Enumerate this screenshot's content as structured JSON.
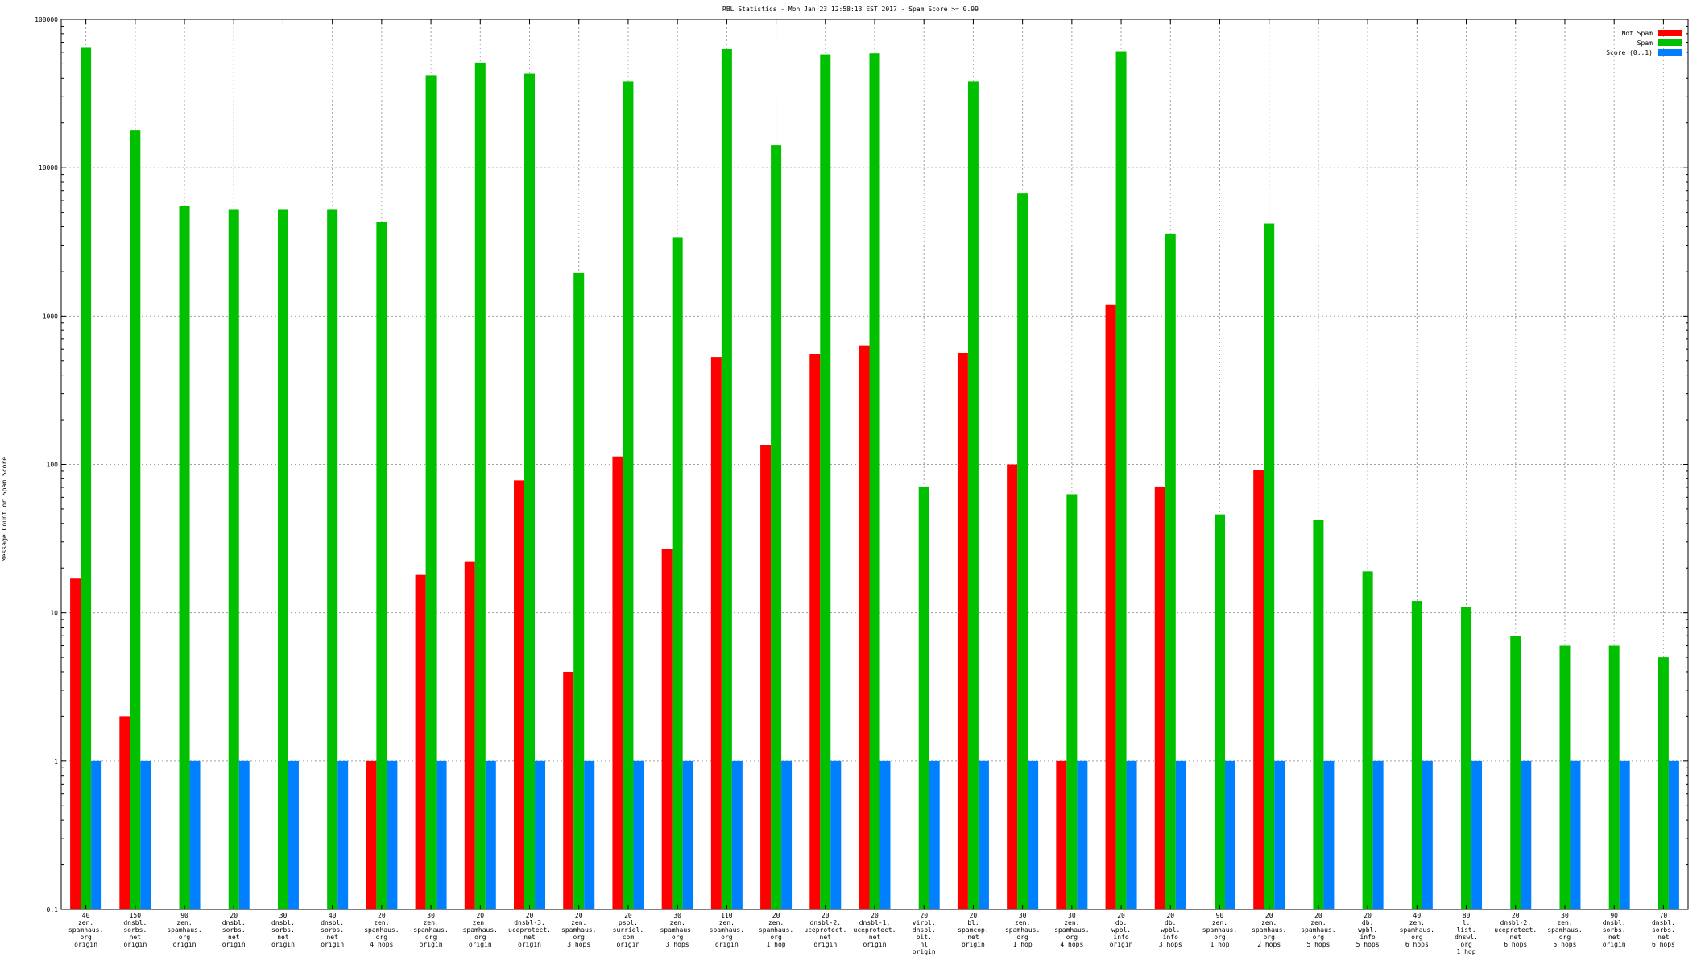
{
  "chart_data": {
    "type": "bar",
    "title": "RBL Statistics - Mon Jan 23 12:58:13 EST 2017 - Spam Score >= 0.99",
    "ylabel": "Message Count or Spam Score",
    "xlabel": "",
    "yscale": "log",
    "ylim": [
      0.1,
      100000
    ],
    "yticks": [
      {
        "value": 0.1,
        "label": "0.1"
      },
      {
        "value": 1,
        "label": "1"
      },
      {
        "value": 10,
        "label": "10"
      },
      {
        "value": 100,
        "label": "100"
      },
      {
        "value": 1000,
        "label": "1000"
      },
      {
        "value": 10000,
        "label": "10000"
      },
      {
        "value": 100000,
        "label": "100000"
      }
    ],
    "grid": true,
    "legend_position": "top-right",
    "categories": [
      [
        "40",
        "zen.",
        "spamhaus.",
        "org",
        "origin"
      ],
      [
        "150",
        "dnsbl.",
        "sorbs.",
        "net",
        "origin"
      ],
      [
        "90",
        "zen.",
        "spamhaus.",
        "org",
        "origin"
      ],
      [
        "20",
        "dnsbl.",
        "sorbs.",
        "net",
        "origin"
      ],
      [
        "30",
        "dnsbl.",
        "sorbs.",
        "net",
        "origin"
      ],
      [
        "40",
        "dnsbl.",
        "sorbs.",
        "net",
        "origin"
      ],
      [
        "20",
        "zen.",
        "spamhaus.",
        "org",
        "4 hops"
      ],
      [
        "30",
        "zen.",
        "spamhaus.",
        "org",
        "origin"
      ],
      [
        "20",
        "zen.",
        "spamhaus.",
        "org",
        "origin"
      ],
      [
        "20",
        "dnsbl-3.",
        "uceprotect.",
        "net",
        "origin"
      ],
      [
        "20",
        "zen.",
        "spamhaus.",
        "org",
        "3 hops"
      ],
      [
        "20",
        "psbl.",
        "surriel.",
        "com",
        "origin"
      ],
      [
        "30",
        "zen.",
        "spamhaus.",
        "org",
        "3 hops"
      ],
      [
        "110",
        "zen.",
        "spamhaus.",
        "org",
        "origin"
      ],
      [
        "20",
        "zen.",
        "spamhaus.",
        "org",
        "1 hop"
      ],
      [
        "20",
        "dnsbl-2.",
        "uceprotect.",
        "net",
        "origin"
      ],
      [
        "20",
        "dnsbl-1.",
        "uceprotect.",
        "net",
        "origin"
      ],
      [
        "20",
        "virbl.",
        "dnsbl.",
        "bit.",
        "nl",
        "origin"
      ],
      [
        "20",
        "bl.",
        "spamcop.",
        "net",
        "origin"
      ],
      [
        "30",
        "zen.",
        "spamhaus.",
        "org",
        "1 hop"
      ],
      [
        "30",
        "zen.",
        "spamhaus.",
        "org",
        "4 hops"
      ],
      [
        "20",
        "db.",
        "wpbl.",
        "info",
        "origin"
      ],
      [
        "20",
        "db.",
        "wpbl.",
        "info",
        "3 hops"
      ],
      [
        "90",
        "zen.",
        "spamhaus.",
        "org",
        "1 hop"
      ],
      [
        "20",
        "zen.",
        "spamhaus.",
        "org",
        "2 hops"
      ],
      [
        "20",
        "zen.",
        "spamhaus.",
        "org",
        "5 hops"
      ],
      [
        "20",
        "db.",
        "wpbl.",
        "info",
        "5 hops"
      ],
      [
        "40",
        "zen.",
        "spamhaus.",
        "org",
        "6 hops"
      ],
      [
        "80",
        "l.",
        "list.",
        "dnswl.",
        "org",
        "1 hop"
      ],
      [
        "20",
        "dnsbl-2.",
        "uceprotect.",
        "net",
        "6 hops"
      ],
      [
        "30",
        "zen.",
        "spamhaus.",
        "org",
        "5 hops"
      ],
      [
        "90",
        "dnsbl.",
        "sorbs.",
        "net",
        "origin"
      ],
      [
        "70",
        "dnsbl.",
        "sorbs.",
        "net",
        "6 hops"
      ]
    ],
    "series": [
      {
        "name": "Not Spam",
        "color": "#ff0000",
        "values": [
          17,
          2,
          null,
          null,
          null,
          null,
          1,
          18,
          22,
          78,
          4,
          113,
          27,
          530,
          135,
          555,
          635,
          null,
          565,
          100,
          1,
          1200,
          71,
          null,
          92,
          null,
          null,
          null,
          null,
          null,
          null,
          null,
          null
        ]
      },
      {
        "name": "Spam",
        "color": "#00c000",
        "values": [
          65000,
          18000,
          5500,
          5200,
          5200,
          5200,
          4300,
          42000,
          51000,
          43000,
          1950,
          38000,
          3400,
          63000,
          14200,
          58000,
          59000,
          71,
          38000,
          6700,
          63,
          61000,
          3600,
          46,
          4200,
          42,
          19,
          12,
          11,
          7,
          6,
          6,
          5
        ]
      },
      {
        "name": "Score (0..1)",
        "color": "#0080ff",
        "values": [
          1,
          1,
          1,
          1,
          1,
          1,
          1,
          1,
          1,
          1,
          1,
          1,
          1,
          1,
          1,
          1,
          1,
          1,
          1,
          1,
          1,
          1,
          1,
          1,
          1,
          1,
          1,
          1,
          1,
          1,
          1,
          1,
          1
        ]
      }
    ]
  }
}
